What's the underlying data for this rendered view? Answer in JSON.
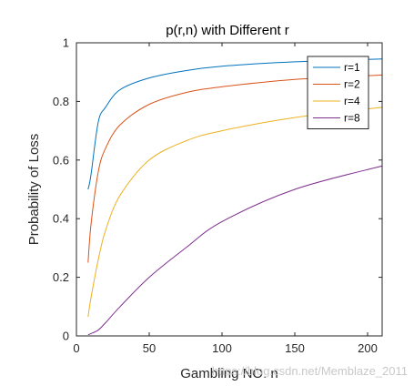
{
  "chart_data": {
    "type": "line",
    "title": "p(r,n) with Different r",
    "xlabel": "Gambling NO. n",
    "ylabel": "Probability of Loss",
    "xlim": [
      0,
      210
    ],
    "ylim": [
      0,
      1
    ],
    "xticks": [
      0,
      50,
      100,
      150,
      200
    ],
    "yticks": [
      0,
      0.2,
      0.4,
      0.6,
      0.8,
      1
    ],
    "xtick_labels": [
      "0",
      "50",
      "100",
      "150",
      "200"
    ],
    "ytick_labels": [
      "0",
      "0.2",
      "0.4",
      "0.6",
      "0.8",
      "1"
    ],
    "grid": false,
    "legend_position": "top-right",
    "series": [
      {
        "name": "r=1",
        "color": "#0072BD",
        "x": [
          8,
          10,
          15,
          20,
          30,
          50,
          75,
          100,
          150,
          210
        ],
        "y": [
          0.5,
          0.55,
          0.73,
          0.78,
          0.84,
          0.88,
          0.905,
          0.92,
          0.935,
          0.945
        ]
      },
      {
        "name": "r=2",
        "color": "#D95319",
        "x": [
          8,
          10,
          15,
          20,
          30,
          50,
          75,
          100,
          150,
          210
        ],
        "y": [
          0.25,
          0.38,
          0.56,
          0.64,
          0.72,
          0.79,
          0.83,
          0.85,
          0.875,
          0.89
        ]
      },
      {
        "name": "r=4",
        "color": "#EDB120",
        "x": [
          8,
          10,
          15,
          20,
          30,
          50,
          75,
          100,
          150,
          210
        ],
        "y": [
          0.065,
          0.13,
          0.26,
          0.36,
          0.48,
          0.6,
          0.665,
          0.7,
          0.745,
          0.78
        ]
      },
      {
        "name": "r=8",
        "color": "#7E2F8E",
        "x": [
          8,
          10,
          15,
          20,
          30,
          50,
          75,
          100,
          150,
          210
        ],
        "y": [
          0.004,
          0.008,
          0.02,
          0.045,
          0.1,
          0.2,
          0.3,
          0.39,
          0.5,
          0.58
        ]
      }
    ]
  },
  "watermark": "https://blog.csdn.net/Memblaze_2011"
}
